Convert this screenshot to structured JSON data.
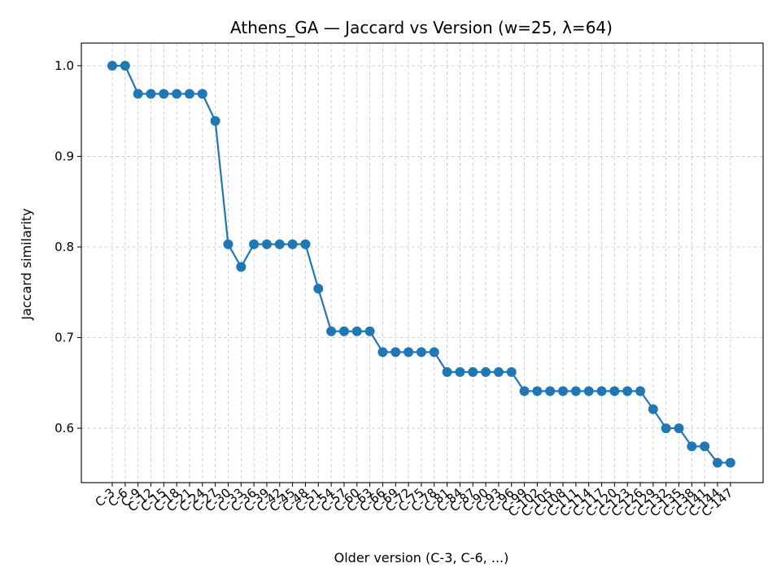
{
  "chart_data": {
    "type": "line",
    "title": "Athens_GA — Jaccard vs Version (w=25, λ=64)",
    "xlabel": "Older version (C-3, C-6, ...)",
    "ylabel": "Jaccard similarity",
    "ylim": [
      0.54,
      1.025
    ],
    "yticks": [
      0.6,
      0.7,
      0.8,
      0.9,
      1.0
    ],
    "grid": true,
    "line_color": "#1f77b4",
    "categories": [
      "C-3",
      "C-6",
      "C-9",
      "C-12",
      "C-15",
      "C-18",
      "C-21",
      "C-24",
      "C-27",
      "C-30",
      "C-33",
      "C-36",
      "C-39",
      "C-42",
      "C-45",
      "C-48",
      "C-51",
      "C-54",
      "C-57",
      "C-60",
      "C-63",
      "C-66",
      "C-69",
      "C-72",
      "C-75",
      "C-78",
      "C-81",
      "C-84",
      "C-87",
      "C-90",
      "C-93",
      "C-96",
      "C-99",
      "C-102",
      "C-105",
      "C-108",
      "C-111",
      "C-114",
      "C-117",
      "C-120",
      "C-123",
      "C-126",
      "C-129",
      "C-132",
      "C-135",
      "C-138",
      "C-141",
      "C-144",
      "C-147"
    ],
    "series": [
      {
        "values": [
          1.0,
          1.0,
          0.969,
          0.969,
          0.969,
          0.969,
          0.969,
          0.969,
          0.939,
          0.803,
          0.778,
          0.803,
          0.803,
          0.803,
          0.803,
          0.803,
          0.754,
          0.707,
          0.707,
          0.707,
          0.707,
          0.684,
          0.684,
          0.684,
          0.684,
          0.684,
          0.662,
          0.662,
          0.662,
          0.662,
          0.662,
          0.662,
          0.641,
          0.641,
          0.641,
          0.641,
          0.641,
          0.641,
          0.641,
          0.641,
          0.641,
          0.641,
          0.621,
          0.6,
          0.6,
          0.58,
          0.58,
          0.562,
          0.562
        ]
      }
    ]
  }
}
